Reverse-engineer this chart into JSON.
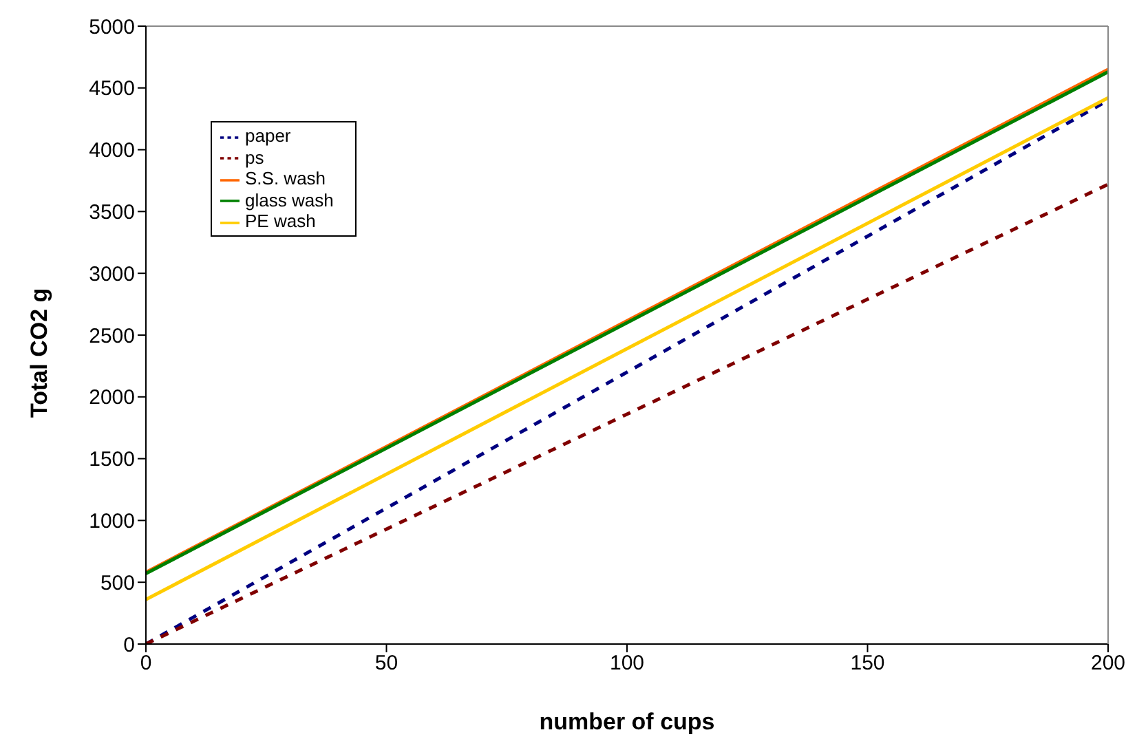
{
  "chart_data": {
    "type": "line",
    "xlabel": "number of cups",
    "ylabel": "Total CO2 g",
    "x": [
      0,
      200
    ],
    "series": [
      {
        "name": "paper",
        "color": "#000080",
        "line_style": "dashed",
        "values": [
          0,
          4400
        ]
      },
      {
        "name": "ps",
        "color": "#800000",
        "line_style": "dashed",
        "values": [
          0,
          3720
        ]
      },
      {
        "name": "S.S. wash",
        "color": "#ff6600",
        "line_style": "solid",
        "values": [
          580,
          4650
        ]
      },
      {
        "name": "glass wash",
        "color": "#008000",
        "line_style": "solid",
        "values": [
          570,
          4630
        ]
      },
      {
        "name": "PE wash",
        "color": "#ffcc00",
        "line_style": "solid",
        "values": [
          360,
          4420
        ]
      }
    ],
    "xlim": [
      0,
      200
    ],
    "xticks": [
      0,
      50,
      100,
      150,
      200
    ],
    "ylim": [
      0,
      5000
    ],
    "yticks": [
      0,
      500,
      1000,
      1500,
      2000,
      2500,
      3000,
      3500,
      4000,
      4500,
      5000
    ],
    "grid": false,
    "legend": "top left",
    "marker": "none"
  }
}
